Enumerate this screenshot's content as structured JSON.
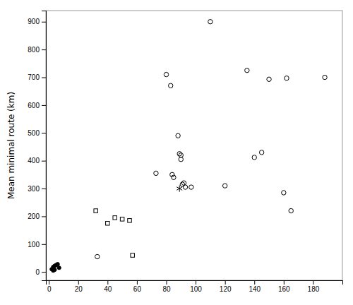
{
  "chart_data": {
    "type": "scatter",
    "ylabel": "Mean minimal route (km)",
    "xlim": [
      -2,
      200
    ],
    "ylim": [
      -30,
      940
    ],
    "xticks": [
      0,
      20,
      40,
      60,
      80,
      100,
      120,
      140,
      160,
      180
    ],
    "yticks": [
      0,
      100,
      200,
      300,
      400,
      500,
      600,
      700,
      800,
      900
    ],
    "series": [
      {
        "marker": "filled-circle",
        "color": "black",
        "x": [
          2,
          3,
          4,
          5,
          6,
          7,
          3,
          4
        ],
        "values": [
          10,
          18,
          22,
          25,
          28,
          15,
          5,
          8
        ]
      },
      {
        "marker": "open-circle",
        "color": "black",
        "x": [
          33,
          73,
          80,
          83,
          84,
          85,
          88,
          89,
          90,
          90,
          91,
          92,
          93,
          97,
          110,
          120,
          135,
          140,
          145,
          150,
          160,
          162,
          165,
          188
        ],
        "values": [
          55,
          355,
          710,
          670,
          350,
          340,
          490,
          425,
          420,
          405,
          315,
          320,
          305,
          305,
          900,
          310,
          725,
          412,
          430,
          693,
          285,
          697,
          220,
          700
        ]
      },
      {
        "marker": "open-square",
        "color": "black",
        "x": [
          32,
          40,
          45,
          50,
          55,
          57
        ],
        "values": [
          220,
          175,
          195,
          190,
          185,
          60
        ]
      },
      {
        "marker": "asterisk",
        "color": "black",
        "x": [
          89
        ],
        "values": [
          300
        ]
      }
    ]
  }
}
